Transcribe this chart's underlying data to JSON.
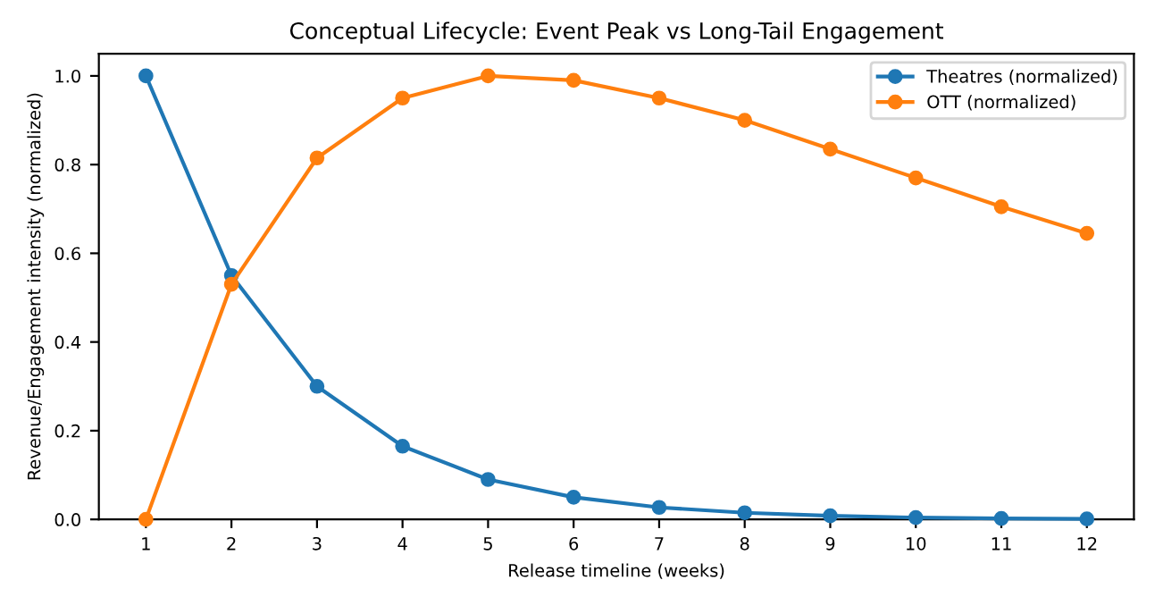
{
  "chart_data": {
    "type": "line",
    "title": "Conceptual Lifecycle: Event Peak vs Long-Tail Engagement",
    "xlabel": "Release timeline (weeks)",
    "ylabel": "Revenue/Engagement intensity (normalized)",
    "x": [
      1,
      2,
      3,
      4,
      5,
      6,
      7,
      8,
      9,
      10,
      11,
      12
    ],
    "series": [
      {
        "name": "Theatres (normalized)",
        "color": "#1f77b4",
        "values": [
          1.0,
          0.55,
          0.3,
          0.165,
          0.09,
          0.05,
          0.027,
          0.015,
          0.008,
          0.004,
          0.002,
          0.001
        ]
      },
      {
        "name": "OTT (normalized)",
        "color": "#ff7f0e",
        "values": [
          0.0,
          0.53,
          0.815,
          0.95,
          1.0,
          0.99,
          0.95,
          0.9,
          0.835,
          0.77,
          0.705,
          0.645
        ]
      }
    ],
    "xlim": [
      0.45,
      12.55
    ],
    "ylim": [
      0,
      1.05
    ],
    "xticks": [
      1,
      2,
      3,
      4,
      5,
      6,
      7,
      8,
      9,
      10,
      11,
      12
    ],
    "yticks": [
      {
        "value": 0,
        "label": "0.0"
      },
      0.2,
      0.4,
      0.6,
      0.8,
      {
        "value": 1,
        "label": "1.0"
      }
    ],
    "legend": "top right",
    "marker": "circle",
    "line_style": "solid",
    "grid": false
  }
}
